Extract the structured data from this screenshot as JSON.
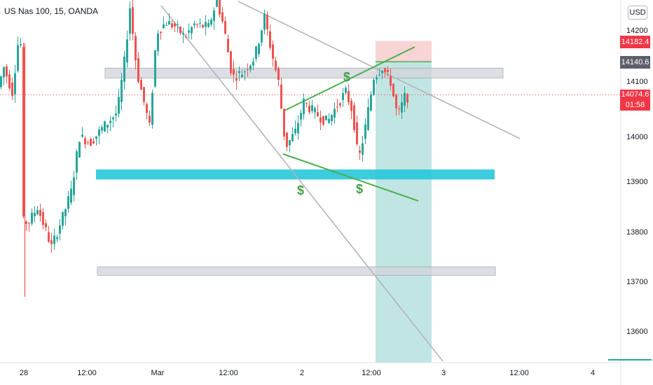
{
  "header": {
    "title": "US Nas 100, 15, OANDA",
    "currency": "USD"
  },
  "chart_data": {
    "type": "candlestick",
    "title": "US Nas 100, 15, OANDA",
    "y_axis": {
      "ylim": [
        13550,
        14260
      ],
      "ticks": [
        14200.0,
        14100.0,
        14000.0,
        13900.0,
        13800.0,
        13700.0,
        13600.0
      ]
    },
    "x_axis": {
      "ticks": [
        "28",
        "12:00",
        "Mar",
        "12:00",
        "2",
        "12:00",
        "3",
        "12:00",
        "4"
      ]
    },
    "price_labels": [
      {
        "value": "14182.4",
        "color": "#f23645"
      },
      {
        "value": "14140.6",
        "color": "#5d606b"
      },
      {
        "value": "14074.6",
        "sub": "01:58",
        "color": "#f23645"
      }
    ],
    "current_price": 14074.6,
    "countdown": "01:58",
    "zones": [
      {
        "name": "resistance-zone",
        "y_top": 14128,
        "y_bottom": 14108,
        "color": "#d1d4dc"
      },
      {
        "name": "demand-zone",
        "y_top": 13925,
        "y_bottom": 13905,
        "color": "#26c6da"
      },
      {
        "name": "lower-zone",
        "y_top": 13730,
        "y_bottom": 13713,
        "color": "#d1d4dc"
      }
    ],
    "position": {
      "type": "short",
      "entry": 14140.6,
      "stop": 14182.4,
      "target": 13540
    },
    "annotations": [
      "$",
      "$",
      "$"
    ],
    "colors": {
      "up": "#26a69a",
      "down": "#ef5350",
      "trend": "#b2b5be",
      "wedge": "#4caf50"
    }
  }
}
